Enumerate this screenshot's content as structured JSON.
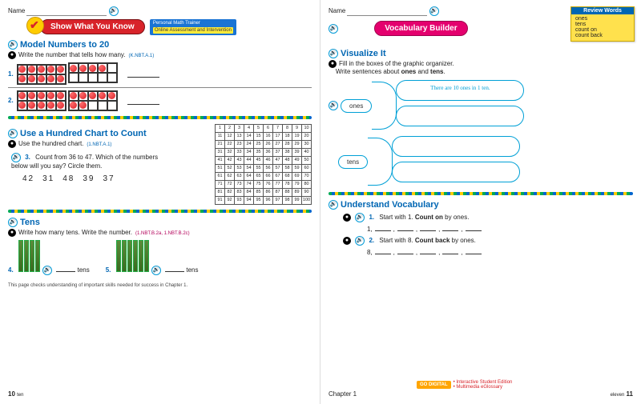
{
  "left": {
    "name_label": "Name",
    "banner": "Show What You Know",
    "trainer_title": "Personal Math Trainer",
    "trainer_sub": "Online Assessment and Intervention",
    "s1": {
      "title": "Model Numbers to 20",
      "instr": "Write the number that tells how many.",
      "std": "(K.NBT.A.1)",
      "q1": "1.",
      "q2": "2.",
      "q1_counters": 14,
      "q2_counters": 17
    },
    "s2": {
      "title": "Use a Hundred Chart to Count",
      "instr": "Use the hundred chart.",
      "std": "(1.NBT.A.1)",
      "q3_num": "3.",
      "q3_text": "Count from 36 to 47. Which of the numbers  below will you say? Circle them.",
      "choices": [
        "42",
        "31",
        "48",
        "39",
        "37"
      ]
    },
    "s3": {
      "title": "Tens",
      "instr": "Write how many tens. Write the number.",
      "std": "(1.NBT.B.2a, 1.NBT.B.2c)",
      "q4": "4.",
      "q5": "5.",
      "tens_label": "tens",
      "q4_count": 4,
      "q5_count": 6
    },
    "footer": "This page checks understanding of important skills needed for success in Chapter 1.",
    "page_num": "10",
    "page_word": "ten"
  },
  "right": {
    "name_label": "Name",
    "banner": "Vocabulary Builder",
    "review": {
      "hdr": "Review Words",
      "words": [
        "ones",
        "tens",
        "count on",
        "count back"
      ]
    },
    "viz": {
      "title": "Visualize It",
      "instr_a": "Fill in the boxes of the graphic organizer.",
      "instr_b": "Write sentences about ones and tens.",
      "ones_label": "ones",
      "tens_label": "tens",
      "example": "There are 10 ones in 1 ten."
    },
    "uv": {
      "title": "Understand Vocabulary",
      "q1_num": "1.",
      "q1_text_a": "Start with 1. ",
      "q1_bold": "Count on",
      "q1_text_b": " by ones.",
      "q1_start": "1,",
      "q2_num": "2.",
      "q2_text_a": "Start with 8. ",
      "q2_bold": "Count back",
      "q2_text_b": " by ones.",
      "q2_start": "8,"
    },
    "go_digital": "GO DIGITAL",
    "link1": "Interactive Student Edition",
    "link2": "Multimedia eGlossary",
    "chapter": "Chapter 1",
    "page_num": "11",
    "page_word": "eleven"
  },
  "colors": {
    "blue": "#0066b3",
    "cyan": "#00a0d6",
    "red": "#d8232a",
    "pink": "#e4006e",
    "yellow": "#ffe14d"
  }
}
